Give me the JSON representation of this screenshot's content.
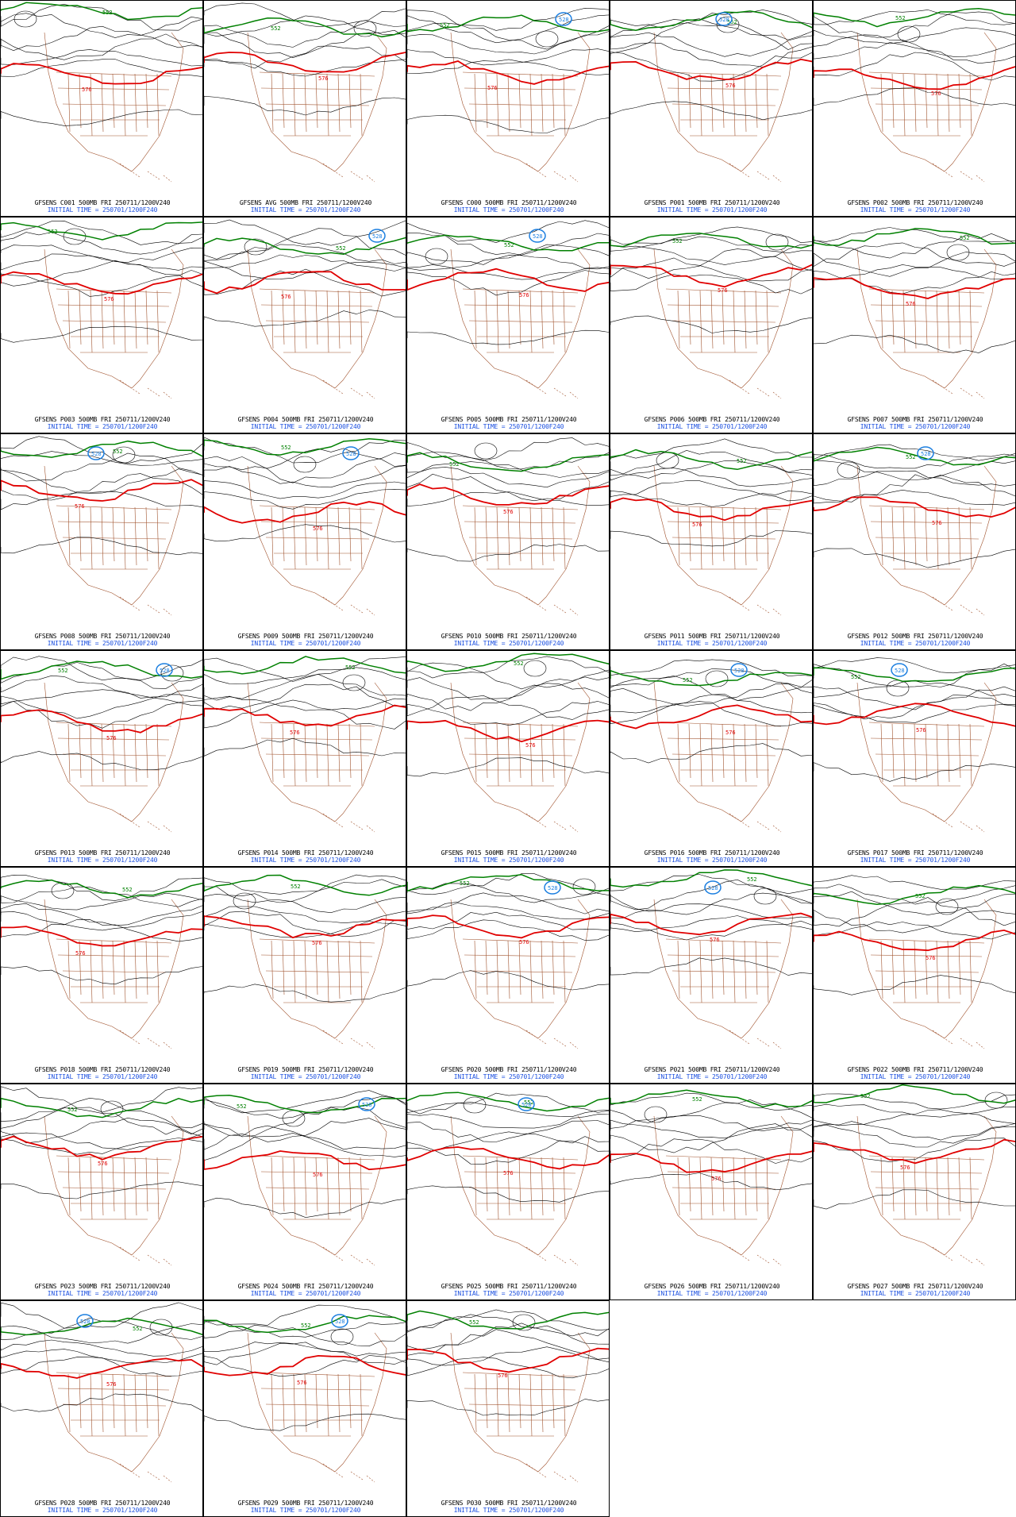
{
  "colors": {
    "background": "#ffffff",
    "border": "#000000",
    "contour": "#000000",
    "line_576": "#e00000",
    "line_552": "#008000",
    "line_528": "#1c7fe0",
    "map_outline": "#a0522d",
    "caption_line1": "#000000",
    "caption_line2": "#1c50e0"
  },
  "contour_labels": {
    "red": "576",
    "green": "552",
    "blue": "528"
  },
  "panels": [
    {
      "title": "GFSENS C001 500MB FRI 250711/1200V240",
      "initial": "INITIAL TIME = 250701/1200F240"
    },
    {
      "title": "GFSENS AVG 500MB FRI 250711/1200V240",
      "initial": "INITIAL TIME = 250701/1200F240"
    },
    {
      "title": "GFSENS C000 500MB FRI 250711/1200V240",
      "initial": "INITIAL TIME = 250701/1200F240"
    },
    {
      "title": "GFSENS P001 500MB FRI 250711/1200V240",
      "initial": "INITIAL TIME = 250701/1200F240"
    },
    {
      "title": "GFSENS P002 500MB FRI 250711/1200V240",
      "initial": "INITIAL TIME = 250701/1200F240"
    },
    {
      "title": "GFSENS P003 500MB FRI 250711/1200V240",
      "initial": "INITIAL TIME = 250701/1200F240"
    },
    {
      "title": "GFSENS P004 500MB FRI 250711/1200V240",
      "initial": "INITIAL TIME = 250701/1200F240"
    },
    {
      "title": "GFSENS P005 500MB FRI 250711/1200V240",
      "initial": "INITIAL TIME = 250701/1200F240"
    },
    {
      "title": "GFSENS P006 500MB FRI 250711/1200V240",
      "initial": "INITIAL TIME = 250701/1200F240"
    },
    {
      "title": "GFSENS P007 500MB FRI 250711/1200V240",
      "initial": "INITIAL TIME = 250701/1200F240"
    },
    {
      "title": "GFSENS P008 500MB FRI 250711/1200V240",
      "initial": "INITIAL TIME = 250701/1200F240"
    },
    {
      "title": "GFSENS P009 500MB FRI 250711/1200V240",
      "initial": "INITIAL TIME = 250701/1200F240"
    },
    {
      "title": "GFSENS P010 500MB FRI 250711/1200V240",
      "initial": "INITIAL TIME = 250701/1200F240"
    },
    {
      "title": "GFSENS P011 500MB FRI 250711/1200V240",
      "initial": "INITIAL TIME = 250701/1200F240"
    },
    {
      "title": "GFSENS P012 500MB FRI 250711/1200V240",
      "initial": "INITIAL TIME = 250701/1200F240"
    },
    {
      "title": "GFSENS P013 500MB FRI 250711/1200V240",
      "initial": "INITIAL TIME = 250701/1200F240"
    },
    {
      "title": "GFSENS P014 500MB FRI 250711/1200V240",
      "initial": "INITIAL TIME = 250701/1200F240"
    },
    {
      "title": "GFSENS P015 500MB FRI 250711/1200V240",
      "initial": "INITIAL TIME = 250701/1200F240"
    },
    {
      "title": "GFSENS P016 500MB FRI 250711/1200V240",
      "initial": "INITIAL TIME = 250701/1200F240"
    },
    {
      "title": "GFSENS P017 500MB FRI 250711/1200V240",
      "initial": "INITIAL TIME = 250701/1200F240"
    },
    {
      "title": "GFSENS P018 500MB FRI 250711/1200V240",
      "initial": "INITIAL TIME = 250701/1200F240"
    },
    {
      "title": "GFSENS P019 500MB FRI 250711/1200V240",
      "initial": "INITIAL TIME = 250701/1200F240"
    },
    {
      "title": "GFSENS P020 500MB FRI 250711/1200V240",
      "initial": "INITIAL TIME = 250701/1200F240"
    },
    {
      "title": "GFSENS P021 500MB FRI 250711/1200V240",
      "initial": "INITIAL TIME = 250701/1200F240"
    },
    {
      "title": "GFSENS P022 500MB FRI 250711/1200V240",
      "initial": "INITIAL TIME = 250701/1200F240"
    },
    {
      "title": "GFSENS P023 500MB FRI 250711/1200V240",
      "initial": "INITIAL TIME = 250701/1200F240"
    },
    {
      "title": "GFSENS P024 500MB FRI 250711/1200V240",
      "initial": "INITIAL TIME = 250701/1200F240"
    },
    {
      "title": "GFSENS P025 500MB FRI 250711/1200V240",
      "initial": "INITIAL TIME = 250701/1200F240"
    },
    {
      "title": "GFSENS P026 500MB FRI 250711/1200V240",
      "initial": "INITIAL TIME = 250701/1200F240"
    },
    {
      "title": "GFSENS P027 500MB FRI 250711/1200V240",
      "initial": "INITIAL TIME = 250701/1200F240"
    },
    {
      "title": "GFSENS P028 500MB FRI 250711/1200V240",
      "initial": "INITIAL TIME = 250701/1200F240"
    },
    {
      "title": "GFSENS P029 500MB FRI 250711/1200V240",
      "initial": "INITIAL TIME = 250701/1200F240"
    },
    {
      "title": "GFSENS P030 500MB FRI 250711/1200V240",
      "initial": "INITIAL TIME = 250701/1200F240"
    }
  ]
}
